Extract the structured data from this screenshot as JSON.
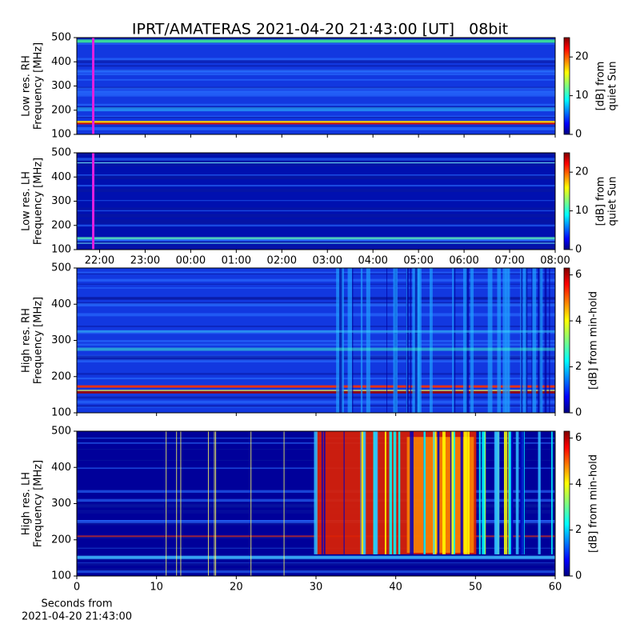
{
  "chart_data": [
    {
      "type": "heatmap",
      "title": "IPRT/AMATERAS 2021-04-20 21:43:00 [UT]   08bit",
      "ylabel": [
        "Low res. RH",
        "Frequency [MHz]"
      ],
      "ylim": [
        100,
        500
      ],
      "yticks": [
        100,
        200,
        300,
        400,
        500
      ],
      "xlim": [
        21.5,
        32
      ],
      "xticks": [
        22,
        23,
        24,
        25,
        26,
        27,
        28,
        29,
        30,
        31,
        32
      ],
      "xticklabels_visible": false,
      "colorbar_label": [
        "[dB] from",
        "quiet Sun"
      ],
      "clim": [
        0,
        25
      ],
      "cticks": [
        0,
        10,
        20
      ],
      "colormap": "jet"
    },
    {
      "type": "heatmap",
      "ylabel": [
        "Low res. LH",
        "Frequency [MHz]"
      ],
      "ylim": [
        100,
        500
      ],
      "yticks": [
        100,
        200,
        300,
        400,
        500
      ],
      "xlim": [
        21.5,
        32
      ],
      "xticks": [
        {
          "value": 22,
          "label": "22:00"
        },
        {
          "value": 23,
          "label": "23:00"
        },
        {
          "value": 24,
          "label": "00:00"
        },
        {
          "value": 25,
          "label": "01:00"
        },
        {
          "value": 26,
          "label": "02:00"
        },
        {
          "value": 27,
          "label": "03:00"
        },
        {
          "value": 28,
          "label": "04:00"
        },
        {
          "value": 29,
          "label": "05:00"
        },
        {
          "value": 30,
          "label": "06:00"
        },
        {
          "value": 31,
          "label": "07:00"
        },
        {
          "value": 32,
          "label": "08:00"
        }
      ],
      "colorbar_label": [
        "[dB] from",
        "quiet Sun"
      ],
      "clim": [
        0,
        25
      ],
      "cticks": [
        0,
        10,
        20
      ],
      "colormap": "jet"
    },
    {
      "type": "heatmap",
      "ylabel": [
        "High res. RH",
        "Frequency [MHz]"
      ],
      "ylim": [
        100,
        500
      ],
      "yticks": [
        100,
        200,
        300,
        400,
        500
      ],
      "xlim": [
        0,
        60
      ],
      "xticks": [
        0,
        10,
        20,
        30,
        40,
        50,
        60
      ],
      "xticklabels_visible": false,
      "colorbar_label": [
        "[dB] from min-hold"
      ],
      "clim": [
        0,
        6.3
      ],
      "cticks": [
        0,
        2,
        4,
        6
      ],
      "colormap": "jet"
    },
    {
      "type": "heatmap",
      "ylabel": [
        "High res. LH",
        "Frequency [MHz]"
      ],
      "ylim": [
        100,
        500
      ],
      "yticks": [
        100,
        200,
        300,
        400,
        500
      ],
      "xlim": [
        0,
        60
      ],
      "xticks": [
        0,
        10,
        20,
        30,
        40,
        50,
        60
      ],
      "xlabel": [
        "Seconds from",
        "2021-04-20 21:43:00"
      ],
      "colorbar_label": [
        "[dB] from min-hold"
      ],
      "clim": [
        0,
        6.3
      ],
      "cticks": [
        0,
        2,
        4,
        6
      ],
      "colormap": "jet"
    }
  ]
}
